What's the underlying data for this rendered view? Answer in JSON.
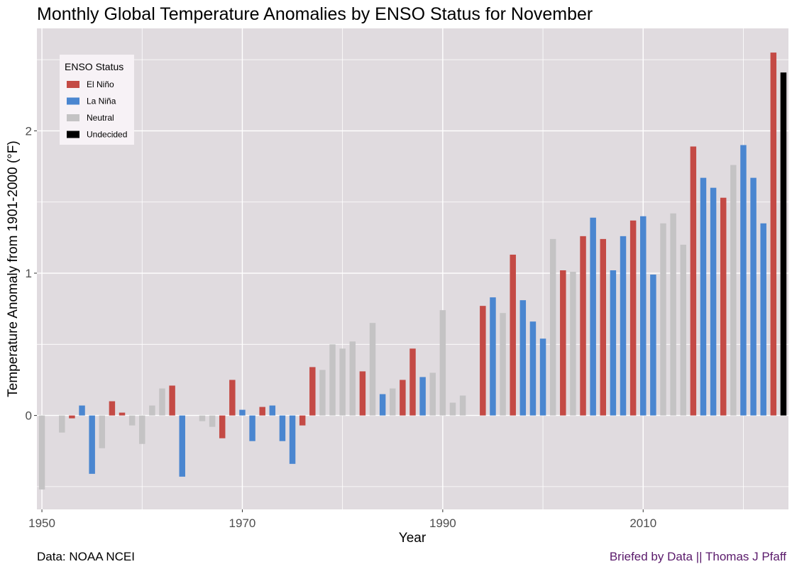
{
  "chart_data": {
    "type": "bar",
    "title": "Monthly Global Temperature Anomalies by ENSO Status for November",
    "xlabel": "Year",
    "ylabel": "Temperature Anomaly from 1901-2000  (°F)",
    "xlim": [
      1949.5,
      2024.5
    ],
    "ylim": [
      -0.66,
      2.72
    ],
    "x_ticks": [
      1950,
      1970,
      1990,
      2010
    ],
    "y_ticks": [
      0,
      1,
      2
    ],
    "grid": true,
    "legend": {
      "title": "ENSO Status",
      "placement": "top-left",
      "entries": [
        {
          "name": "El Niño",
          "color": "#c44a45"
        },
        {
          "name": "La Niña",
          "color": "#4a86d0"
        },
        {
          "name": "Neutral",
          "color": "#c4c3c4"
        },
        {
          "name": "Undecided",
          "color": "#000000"
        }
      ]
    },
    "colors": {
      "El Niño": "#c44a45",
      "La Niña": "#4a86d0",
      "Neutral": "#c4c3c4",
      "Undecided": "#000000",
      "panel": "#e0dbdf",
      "grid": "#ffffff"
    },
    "years": [
      1950,
      1951,
      1952,
      1953,
      1954,
      1955,
      1956,
      1957,
      1958,
      1959,
      1960,
      1961,
      1962,
      1963,
      1964,
      1965,
      1966,
      1967,
      1968,
      1969,
      1970,
      1971,
      1972,
      1973,
      1974,
      1975,
      1976,
      1977,
      1978,
      1979,
      1980,
      1981,
      1982,
      1983,
      1984,
      1985,
      1986,
      1987,
      1988,
      1989,
      1990,
      1991,
      1992,
      1993,
      1994,
      1995,
      1996,
      1997,
      1998,
      1999,
      2000,
      2001,
      2002,
      2003,
      2004,
      2005,
      2006,
      2007,
      2008,
      2009,
      2010,
      2011,
      2012,
      2013,
      2014,
      2015,
      2016,
      2017,
      2018,
      2019,
      2020,
      2021,
      2022,
      2023,
      2024
    ],
    "values": [
      -0.52,
      0,
      -0.12,
      -0.02,
      0.07,
      -0.41,
      -0.23,
      0.1,
      0.02,
      -0.07,
      -0.2,
      0.07,
      0.19,
      0.21,
      -0.43,
      0,
      -0.04,
      -0.08,
      -0.16,
      0.25,
      0.04,
      -0.18,
      0.06,
      0.07,
      -0.18,
      -0.34,
      -0.07,
      0.34,
      0.32,
      0.5,
      0.47,
      0.52,
      0.31,
      0.65,
      0.15,
      0.19,
      0.25,
      0.47,
      0.27,
      0.3,
      0.74,
      0.09,
      0.14,
      0,
      0.77,
      0.83,
      0.72,
      1.13,
      0.81,
      0.66,
      0.54,
      1.24,
      1.02,
      1.01,
      1.26,
      1.39,
      1.24,
      1.02,
      1.26,
      1.37,
      1.4,
      0.99,
      1.35,
      1.42,
      1.2,
      1.89,
      1.67,
      1.6,
      1.53,
      1.76,
      1.9,
      1.67,
      1.35,
      2.55,
      2.41
    ],
    "status": [
      "Neutral",
      "Neutral",
      "Neutral",
      "El Niño",
      "La Niña",
      "La Niña",
      "Neutral",
      "El Niño",
      "El Niño",
      "Neutral",
      "Neutral",
      "Neutral",
      "Neutral",
      "El Niño",
      "La Niña",
      "Neutral",
      "Neutral",
      "Neutral",
      "El Niño",
      "El Niño",
      "La Niña",
      "La Niña",
      "El Niño",
      "La Niña",
      "La Niña",
      "La Niña",
      "El Niño",
      "El Niño",
      "Neutral",
      "Neutral",
      "Neutral",
      "Neutral",
      "El Niño",
      "Neutral",
      "La Niña",
      "Neutral",
      "El Niño",
      "El Niño",
      "La Niña",
      "Neutral",
      "Neutral",
      "Neutral",
      "Neutral",
      "Neutral",
      "El Niño",
      "La Niña",
      "Neutral",
      "El Niño",
      "La Niña",
      "La Niña",
      "La Niña",
      "Neutral",
      "El Niño",
      "Neutral",
      "El Niño",
      "La Niña",
      "El Niño",
      "La Niña",
      "La Niña",
      "El Niño",
      "La Niña",
      "La Niña",
      "Neutral",
      "Neutral",
      "Neutral",
      "El Niño",
      "La Niña",
      "La Niña",
      "El Niño",
      "Neutral",
      "La Niña",
      "La Niña",
      "La Niña",
      "El Niño",
      "Undecided"
    ]
  },
  "captions": {
    "source": "Data: NOAA NCEI",
    "credit": "Briefed by Data || Thomas J Pfaff"
  }
}
